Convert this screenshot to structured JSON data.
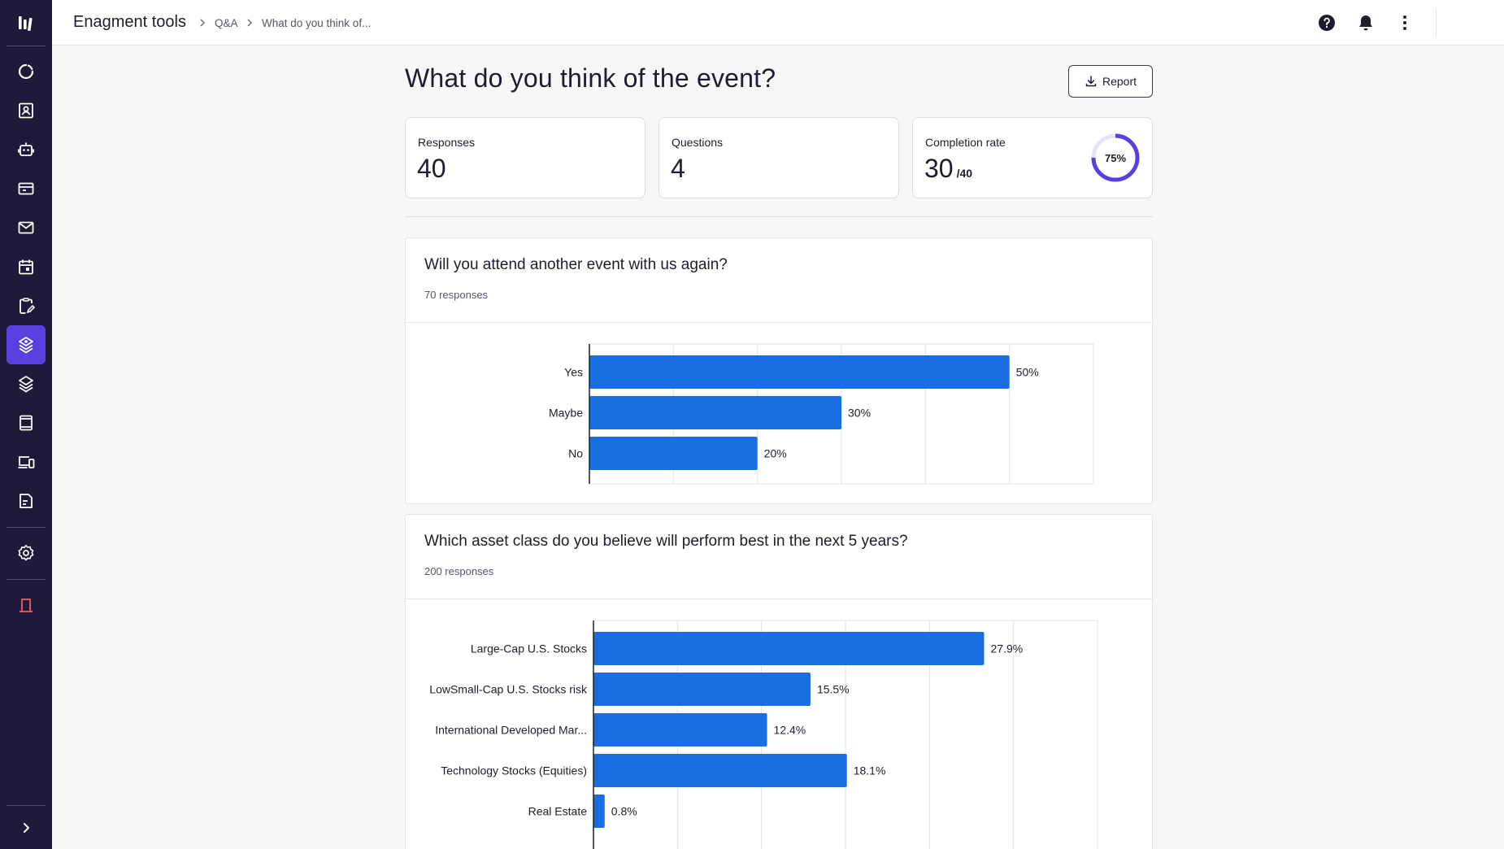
{
  "sidebar": {
    "logo_icon": "brand-logo-icon",
    "items": [
      {
        "name": "analytics-icon",
        "active": false
      },
      {
        "name": "contacts-icon",
        "active": false
      },
      {
        "name": "robot-icon",
        "active": false
      },
      {
        "name": "ticket-icon",
        "active": false
      },
      {
        "name": "mail-icon",
        "active": false
      },
      {
        "name": "calendar-icon",
        "active": false
      },
      {
        "name": "clipboard-edit-icon",
        "active": false
      },
      {
        "name": "engagement-tools-icon",
        "active": true
      },
      {
        "name": "layers-icon",
        "active": false
      },
      {
        "name": "tablet-icon",
        "active": false
      },
      {
        "name": "devices-icon",
        "active": false
      },
      {
        "name": "document-icon",
        "active": false
      }
    ],
    "settings_icon": "settings-icon",
    "exit_icon": "exit-icon",
    "expand_icon": "chevron-right-icon",
    "accent_color": "#5a3ee0",
    "background_color": "#1e1a3a"
  },
  "header": {
    "title": "Enagment tools",
    "breadcrumb": [
      "Q&A",
      "What do you think of..."
    ],
    "icons": [
      "help-icon",
      "bell-icon",
      "more-vertical-icon"
    ]
  },
  "page": {
    "title": "What do you think of the event?",
    "report_label": "Report"
  },
  "stats": {
    "responses": {
      "label": "Responses",
      "value": "40"
    },
    "questions": {
      "label": "Questions",
      "value": "4"
    },
    "completion": {
      "label": "Completion rate",
      "value": "30",
      "total": "/40",
      "percent_label": "75%",
      "percent": 75
    }
  },
  "questions": [
    {
      "title": "Will you attend another event with us again?",
      "responses_label": "70 responses"
    },
    {
      "title": "Which asset class do you believe will perform best in the next 5 years?",
      "responses_label": "200 responses"
    }
  ],
  "chart_data": [
    {
      "type": "bar",
      "orientation": "horizontal",
      "categories": [
        "Yes",
        "Maybe",
        "No"
      ],
      "values": [
        50,
        30,
        20
      ],
      "value_labels": [
        "50%",
        "30%",
        "20%"
      ],
      "xlim": [
        0,
        60
      ],
      "grid": true,
      "bar_color": "#1a6fe0"
    },
    {
      "type": "bar",
      "orientation": "horizontal",
      "categories": [
        "Large-Cap U.S. Stocks",
        "LowSmall-Cap U.S. Stocks risk",
        "International Developed Mar...",
        "Technology Stocks (Equities)",
        "Real Estate"
      ],
      "values": [
        27.9,
        15.5,
        12.4,
        18.1,
        0.8
      ],
      "value_labels": [
        "27.9%",
        "15.5%",
        "12.4%",
        "18.1%",
        "0.8%"
      ],
      "xlim": [
        0,
        36
      ],
      "grid": true,
      "bar_color": "#1a6fe0"
    }
  ]
}
